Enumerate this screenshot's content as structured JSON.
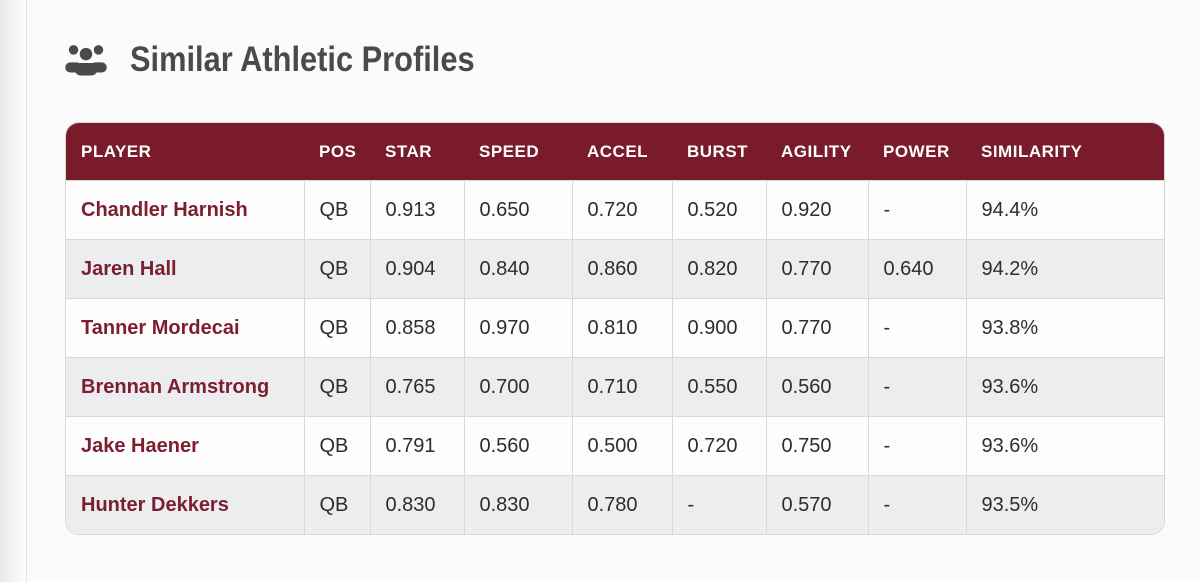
{
  "section": {
    "title": "Similar Athletic Profiles",
    "title_icon": "users-icon"
  },
  "table": {
    "columns": [
      "PLAYER",
      "POS",
      "STAR",
      "SPEED",
      "ACCEL",
      "BURST",
      "AGILITY",
      "POWER",
      "SIMILARITY"
    ],
    "rows": [
      {
        "player": "Chandler Harnish",
        "pos": "QB",
        "star": "0.913",
        "speed": "0.650",
        "accel": "0.720",
        "burst": "0.520",
        "agility": "0.920",
        "power": "-",
        "similarity": "94.4%"
      },
      {
        "player": "Jaren Hall",
        "pos": "QB",
        "star": "0.904",
        "speed": "0.840",
        "accel": "0.860",
        "burst": "0.820",
        "agility": "0.770",
        "power": "0.640",
        "similarity": "94.2%"
      },
      {
        "player": "Tanner Mordecai",
        "pos": "QB",
        "star": "0.858",
        "speed": "0.970",
        "accel": "0.810",
        "burst": "0.900",
        "agility": "0.770",
        "power": "-",
        "similarity": "93.8%"
      },
      {
        "player": "Brennan Armstrong",
        "pos": "QB",
        "star": "0.765",
        "speed": "0.700",
        "accel": "0.710",
        "burst": "0.550",
        "agility": "0.560",
        "power": "-",
        "similarity": "93.6%"
      },
      {
        "player": "Jake Haener",
        "pos": "QB",
        "star": "0.791",
        "speed": "0.560",
        "accel": "0.500",
        "burst": "0.720",
        "agility": "0.750",
        "power": "-",
        "similarity": "93.6%"
      },
      {
        "player": "Hunter Dekkers",
        "pos": "QB",
        "star": "0.830",
        "speed": "0.830",
        "accel": "0.780",
        "burst": "-",
        "agility": "0.570",
        "power": "-",
        "similarity": "93.5%"
      }
    ]
  },
  "colors": {
    "header_bg": "#7a1b2c",
    "header_text": "#ffffff",
    "player_name": "#7c1e30",
    "cell_text": "#2d2d2f",
    "row_bg": "#fdfdfe",
    "row_alt_bg": "#ebedef",
    "border": "#d8d8da",
    "title_text": "#4a4a4c",
    "page_bg": "#fbfbfc"
  }
}
